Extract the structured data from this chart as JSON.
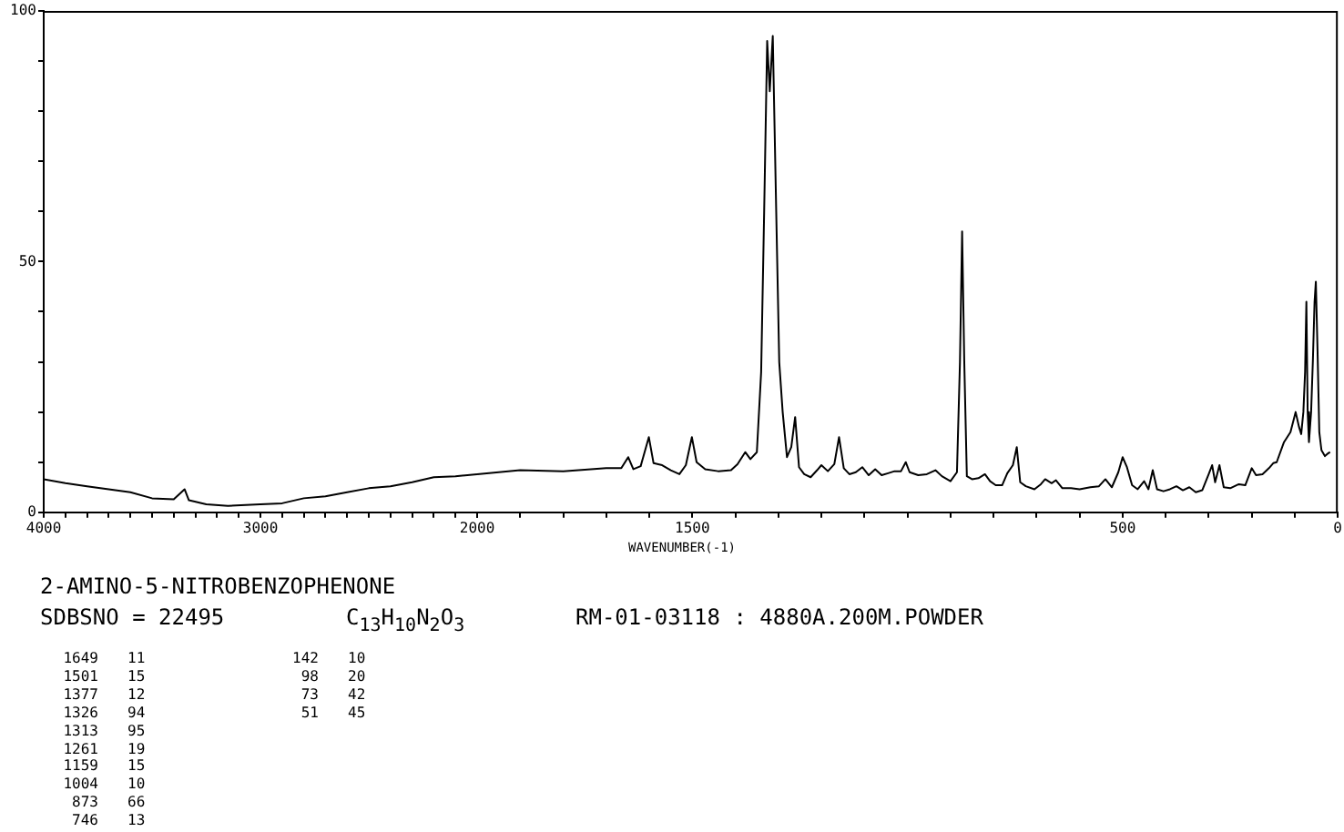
{
  "chart_data": [
    {
      "type": "line",
      "title": "2-AMINO-5-NITROBENZOPHENONE",
      "annotations": [
        "SDBSNO = 22495",
        "C$_{13}$H$_{10}$N$_{2}$O$_{3}$",
        "RM-01-03118 : 4880A.200M.POWDER",
        "1649 11",
        "1501 15",
        "1377 12",
        "1326 94",
        "1313 95",
        "1261 19",
        "1159 15",
        "1004 10",
        "873 66",
        "746 13",
        "142 10",
        "98 20",
        "73 42",
        "51 45"
      ],
      "x": [
        4000,
        3900,
        3800,
        3700,
        3600,
        3500,
        3400,
        3350,
        3330,
        3250,
        3150,
        3000,
        2900,
        2800,
        2700,
        2600,
        2500,
        2400,
        2300,
        2200,
        2100,
        2000
      ],
      "series": [
        {
          "color": "#000000",
          "values": [
            6.6,
            5.8,
            5.2,
            4.6,
            4.0,
            2.8,
            2.6,
            4.6,
            2.4,
            1.6,
            1.3,
            1.6,
            1.8,
            2.8,
            3.2,
            4.0,
            4.8,
            5.2,
            6.0,
            7.0,
            7.2,
            7.6
          ]
        }
      ],
      "xlim": [
        4000,
        2000
      ],
      "xticks": [
        4000,
        {
          "value": 3900,
          "label": null
        },
        {
          "value": 3800,
          "label": null
        },
        {
          "value": 3700,
          "label": null
        },
        {
          "value": 3600,
          "label": null
        },
        {
          "value": 3500,
          "label": null
        },
        {
          "value": 3400,
          "label": null
        },
        {
          "value": 3300,
          "label": null
        },
        {
          "value": 3200,
          "label": null
        },
        {
          "value": 3100,
          "label": null
        },
        3000,
        {
          "value": 2900,
          "label": null
        },
        {
          "value": 2800,
          "label": null
        },
        {
          "value": 2700,
          "label": null
        },
        {
          "value": 2600,
          "label": null
        },
        {
          "value": 2500,
          "label": null
        },
        {
          "value": 2400,
          "label": null
        },
        {
          "value": 2300,
          "label": null
        },
        {
          "value": 2200,
          "label": null
        },
        {
          "value": 2100,
          "label": null
        },
        2000
      ],
      "ylim": [
        0,
        100
      ],
      "yticks": [
        0,
        {
          "value": 10,
          "label": null
        },
        {
          "value": 20,
          "label": null
        },
        {
          "value": 30,
          "label": null
        },
        {
          "value": 40,
          "label": null
        },
        50,
        {
          "value": 60,
          "label": null
        },
        {
          "value": 70,
          "label": null
        },
        {
          "value": 80,
          "label": null
        },
        {
          "value": 90,
          "label": null
        },
        100
      ],
      "marker": "none",
      "line_style": "solid"
    },
    {
      "type": "line",
      "xlabel": "WAVENUMBER(-1)",
      "x": [
        2000,
        1900,
        1800,
        1700,
        1665,
        1649,
        1637,
        1620,
        1601,
        1590,
        1570,
        1550,
        1530,
        1515,
        1501,
        1490,
        1470,
        1440,
        1410,
        1395,
        1377,
        1365,
        1350,
        1340,
        1333,
        1326,
        1320,
        1313,
        1305,
        1298,
        1290,
        1280,
        1270,
        1261,
        1252,
        1240,
        1225,
        1210,
        1200,
        1185,
        1170,
        1159,
        1148,
        1135,
        1120,
        1105,
        1090,
        1075,
        1060,
        1045,
        1030,
        1015,
        1004,
        995,
        975,
        955,
        935,
        920,
        900,
        885,
        878,
        873,
        868,
        862,
        850,
        835,
        820,
        808,
        795,
        780,
        768,
        755,
        746,
        738,
        725,
        705,
        690,
        680,
        665,
        655,
        640,
        620,
        600,
        575,
        555,
        540,
        525,
        510,
        500,
        490,
        478,
        465,
        450,
        440,
        430,
        420,
        405,
        390,
        375,
        360,
        345,
        330,
        315,
        300,
        292,
        285,
        275,
        265,
        250,
        230,
        215,
        200,
        190,
        175,
        160,
        150,
        142,
        125,
        110,
        98,
        90,
        85,
        80,
        76,
        73,
        70,
        67,
        62,
        58,
        54,
        51,
        47,
        43,
        38,
        30,
        25,
        18
      ],
      "series": [
        {
          "color": "#000000",
          "values": [
            7.6,
            8.4,
            8.2,
            8.8,
            8.8,
            11,
            8.6,
            9.2,
            15,
            9.8,
            9.4,
            8.4,
            7.6,
            9.4,
            15,
            10,
            8.6,
            8.2,
            8.4,
            9.6,
            12,
            10.6,
            12,
            28,
            60,
            94,
            84,
            95,
            60,
            30,
            20,
            11,
            13,
            19,
            9,
            7.6,
            7,
            8.4,
            9.4,
            8.2,
            9.6,
            15,
            8.8,
            7.6,
            8,
            9,
            7.4,
            8.6,
            7.4,
            7.8,
            8.2,
            8.2,
            10,
            8,
            7.4,
            7.6,
            8.4,
            7.2,
            6.2,
            8,
            30,
            56,
            30,
            7.2,
            6.6,
            6.8,
            7.6,
            6.2,
            5.4,
            5.4,
            7.8,
            9.4,
            13,
            6,
            5.2,
            4.6,
            5.6,
            6.6,
            5.8,
            6.4,
            4.8,
            4.8,
            4.6,
            5,
            5.2,
            6.6,
            5,
            8,
            11,
            9,
            5.4,
            4.6,
            6.2,
            4.6,
            8.4,
            4.6,
            4.2,
            4.6,
            5.2,
            4.4,
            5,
            4,
            4.4,
            7.6,
            9.4,
            6,
            9.4,
            5,
            4.8,
            5.6,
            5.4,
            8.8,
            7.4,
            7.6,
            8.8,
            9.8,
            10,
            14,
            16,
            20,
            17,
            15.6,
            20,
            28,
            42,
            20,
            14,
            20,
            30,
            42,
            46,
            32,
            16,
            12.4,
            11.2,
            11.6,
            12
          ]
        }
      ],
      "xlim": [
        2000,
        0
      ],
      "xticks": [
        {
          "value": 2000,
          "label": null
        },
        {
          "value": 1900,
          "label": null
        },
        {
          "value": 1800,
          "label": null
        },
        {
          "value": 1700,
          "label": null
        },
        {
          "value": 1600,
          "label": null
        },
        1500,
        {
          "value": 1400,
          "label": null
        },
        {
          "value": 1300,
          "label": null
        },
        {
          "value": 1200,
          "label": null
        },
        {
          "value": 1100,
          "label": null
        },
        {
          "value": 1000,
          "label": null
        },
        {
          "value": 900,
          "label": null
        },
        {
          "value": 800,
          "label": null
        },
        {
          "value": 700,
          "label": null
        },
        {
          "value": 600,
          "label": null
        },
        500,
        {
          "value": 400,
          "label": null
        },
        {
          "value": 300,
          "label": null
        },
        {
          "value": 200,
          "label": null
        },
        {
          "value": 100,
          "label": null
        },
        0
      ],
      "ylim": [
        0,
        100
      ],
      "yticks": [
        0,
        50,
        100
      ],
      "tick_labels": "x",
      "marker": "none",
      "line_style": "solid"
    }
  ]
}
